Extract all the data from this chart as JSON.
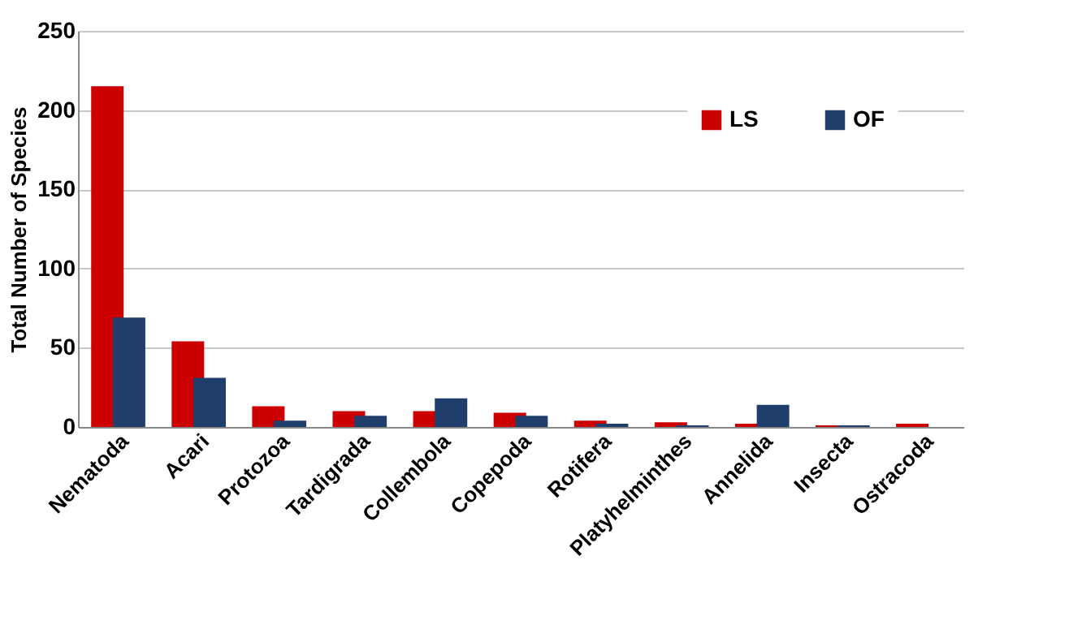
{
  "chart_data": {
    "type": "bar",
    "ylabel": "Total Number of Species",
    "categories": [
      "Nematoda",
      "Acari",
      "Protozoa",
      "Tardigrada",
      "Collembola",
      "Copepoda",
      "Rotifera",
      "Platyhelminthes",
      "Annelida",
      "Insecta",
      "Ostracoda"
    ],
    "series": [
      {
        "name": "LS",
        "color": "#cc0000",
        "values": [
          215,
          54,
          13,
          10,
          10,
          9,
          4,
          3,
          2,
          1,
          2
        ]
      },
      {
        "name": "OF",
        "color": "#1f3e6b",
        "values": [
          69,
          31,
          4,
          7,
          18,
          7,
          2,
          1,
          14,
          1,
          0
        ]
      }
    ],
    "ylim": [
      0,
      250
    ],
    "yticks": [
      0,
      50,
      100,
      150,
      200,
      250
    ],
    "grid": "y",
    "legend": "top right"
  }
}
